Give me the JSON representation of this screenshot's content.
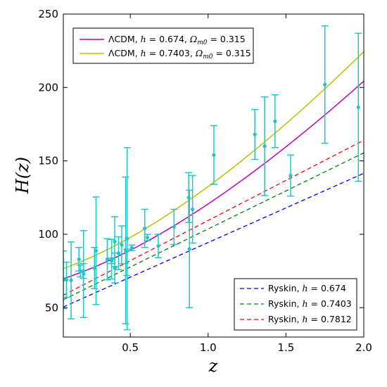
{
  "chart_data": {
    "type": "line",
    "xlabel": "z",
    "ylabel": "H(z)",
    "xlim": [
      0.07,
      2.0
    ],
    "ylim": [
      30,
      250
    ],
    "xticks": [
      0.5,
      1.0,
      1.5,
      2.0
    ],
    "xtick_labels": [
      "0.5",
      "1.0",
      "1.5",
      "2.0"
    ],
    "yticks": [
      50,
      100,
      150,
      200,
      250
    ],
    "ytick_labels": [
      "50",
      "100",
      "150",
      "200",
      "250"
    ],
    "grid": false,
    "legends": [
      {
        "placement": "top-left",
        "entries": [
          {
            "series": "lcdm_0674",
            "label": "ΛCDM, h = 0.674, Ωm0 = 0.315"
          },
          {
            "series": "lcdm_07403",
            "label": "ΛCDM, h = 0.7403, Ωm0 = 0.315"
          }
        ]
      },
      {
        "placement": "bottom-right",
        "entries": [
          {
            "series": "ryskin_0674",
            "label": "Ryskin, h = 0.674"
          },
          {
            "series": "ryskin_07403",
            "label": "Ryskin, h = 0.7403"
          },
          {
            "series": "ryskin_07812",
            "label": "Ryskin, h = 0.7812"
          }
        ]
      }
    ],
    "series": [
      {
        "id": "lcdm_0674",
        "name": "ΛCDM, h = 0.674, Ωm0 = 0.315",
        "style": "solid",
        "color": "#bf00bf",
        "model": "lcdm",
        "h": 0.674,
        "om": 0.315
      },
      {
        "id": "lcdm_07403",
        "name": "ΛCDM, h = 0.7403, Ωm0 = 0.315",
        "style": "solid",
        "color": "#bfbf00",
        "model": "lcdm",
        "h": 0.7403,
        "om": 0.315
      },
      {
        "id": "ryskin_0674",
        "name": "Ryskin, h = 0.674",
        "style": "dashed",
        "color": "#0000ff",
        "model": "ryskin",
        "h": 0.674
      },
      {
        "id": "ryskin_07403",
        "name": "Ryskin, h = 0.7403",
        "style": "dashed",
        "color": "#008000",
        "model": "ryskin",
        "h": 0.7403
      },
      {
        "id": "ryskin_07812",
        "name": "Ryskin, h = 0.7812",
        "style": "dashed",
        "color": "#ff0000",
        "model": "ryskin",
        "h": 0.7812
      }
    ],
    "observations": {
      "color": "#1fc7c7",
      "points": [
        {
          "z": 0.07,
          "H": 69.0,
          "err": 19.6
        },
        {
          "z": 0.09,
          "H": 69.0,
          "err": 12.0
        },
        {
          "z": 0.12,
          "H": 68.6,
          "err": 26.2
        },
        {
          "z": 0.17,
          "H": 83.0,
          "err": 8.0
        },
        {
          "z": 0.179,
          "H": 75.0,
          "err": 4.0
        },
        {
          "z": 0.199,
          "H": 75.0,
          "err": 5.0
        },
        {
          "z": 0.2,
          "H": 72.9,
          "err": 29.6
        },
        {
          "z": 0.27,
          "H": 77.0,
          "err": 14.0
        },
        {
          "z": 0.28,
          "H": 88.8,
          "err": 36.6
        },
        {
          "z": 0.352,
          "H": 83.0,
          "err": 14.0
        },
        {
          "z": 0.38,
          "H": 81.9,
          "err": 1.9
        },
        {
          "z": 0.3802,
          "H": 83.0,
          "err": 13.5
        },
        {
          "z": 0.4,
          "H": 95.0,
          "err": 17.0
        },
        {
          "z": 0.4004,
          "H": 77.0,
          "err": 10.2
        },
        {
          "z": 0.4247,
          "H": 87.1,
          "err": 11.2
        },
        {
          "z": 0.44497,
          "H": 92.8,
          "err": 12.9
        },
        {
          "z": 0.47,
          "H": 89.0,
          "err": 50.0
        },
        {
          "z": 0.4783,
          "H": 80.9,
          "err": 9.0
        },
        {
          "z": 0.48,
          "H": 97.0,
          "err": 62.0
        },
        {
          "z": 0.51,
          "H": 90.8,
          "err": 1.9
        },
        {
          "z": 0.593,
          "H": 104.0,
          "err": 13.0
        },
        {
          "z": 0.61,
          "H": 97.8,
          "err": 2.1
        },
        {
          "z": 0.68,
          "H": 92.0,
          "err": 8.0
        },
        {
          "z": 0.781,
          "H": 105.0,
          "err": 12.0
        },
        {
          "z": 0.875,
          "H": 125.0,
          "err": 17.0
        },
        {
          "z": 0.88,
          "H": 90.0,
          "err": 40.0
        },
        {
          "z": 0.9,
          "H": 117.0,
          "err": 23.0
        },
        {
          "z": 1.037,
          "H": 154.0,
          "err": 20.0
        },
        {
          "z": 1.3,
          "H": 168.0,
          "err": 17.0
        },
        {
          "z": 1.363,
          "H": 160.0,
          "err": 33.6
        },
        {
          "z": 1.43,
          "H": 177.0,
          "err": 18.0
        },
        {
          "z": 1.53,
          "H": 140.0,
          "err": 14.0
        },
        {
          "z": 1.75,
          "H": 202.0,
          "err": 40.0
        },
        {
          "z": 1.965,
          "H": 186.5,
          "err": 50.4
        }
      ]
    }
  }
}
